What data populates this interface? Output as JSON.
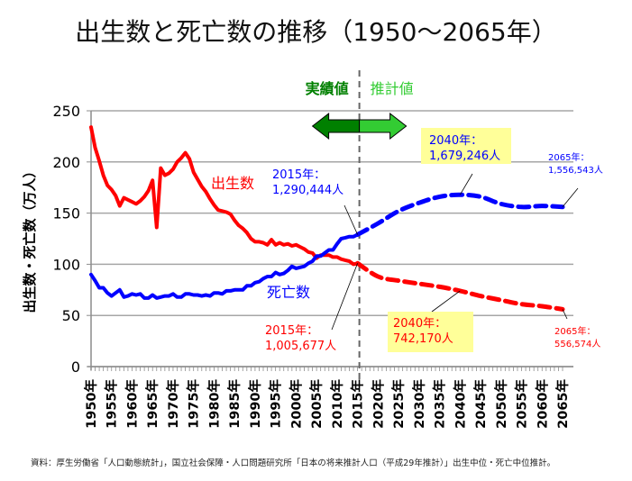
{
  "page": {
    "title": "出生数と死亡数の推移（1950〜2065年）",
    "footnote": "資料：厚生労働省「人口動態統計」，国立社会保障・人口問題研究所「日本の将来推計人口（平成29年推計）」出生中位・死亡中位推計。"
  },
  "chart_data": {
    "type": "line",
    "title": "出生数と死亡数の推移（1950〜2065年）",
    "xlabel": "",
    "ylabel": "出生数・死亡数（万人）",
    "ylim": [
      0,
      250
    ],
    "yticks": [
      0,
      50,
      100,
      150,
      200,
      250
    ],
    "xlim": [
      1950,
      2065
    ],
    "xtick_labels": [
      "1950年",
      "1955年",
      "1960年",
      "1965年",
      "1970年",
      "1975年",
      "1980年",
      "1985年",
      "1990年",
      "1995年",
      "2000年",
      "2005年",
      "2010年",
      "2015年",
      "2020年",
      "2025年",
      "2030年",
      "2035年",
      "2040年",
      "2045年",
      "2050年",
      "2055年",
      "2060年",
      "2065年"
    ],
    "grid": "horizontal",
    "divider_year": 2015,
    "period_labels": {
      "actual": "実績値",
      "projected": "推計値"
    },
    "colors": {
      "births": "#ff0000",
      "deaths": "#0000ff",
      "actual": "#008000",
      "projected": "#33cc33",
      "callout_bg": "#ffff99"
    },
    "series": [
      {
        "name": "出生数",
        "color": "#ff0000",
        "actual": {
          "x": [
            1950,
            1951,
            1952,
            1953,
            1954,
            1955,
            1956,
            1957,
            1958,
            1959,
            1960,
            1961,
            1962,
            1963,
            1964,
            1965,
            1966,
            1967,
            1968,
            1969,
            1970,
            1971,
            1972,
            1973,
            1974,
            1975,
            1976,
            1977,
            1978,
            1979,
            1980,
            1981,
            1982,
            1983,
            1984,
            1985,
            1986,
            1987,
            1988,
            1989,
            1990,
            1991,
            1992,
            1993,
            1994,
            1995,
            1996,
            1997,
            1998,
            1999,
            2000,
            2001,
            2002,
            2003,
            2004,
            2005,
            2006,
            2007,
            2008,
            2009,
            2010,
            2011,
            2012,
            2013,
            2014,
            2015
          ],
          "y": [
            234,
            214,
            201,
            187,
            177,
            173,
            167,
            157,
            165,
            163,
            161,
            159,
            162,
            166,
            172,
            182,
            136,
            194,
            187,
            189,
            193,
            200,
            204,
            209,
            203,
            190,
            183,
            176,
            171,
            164,
            158,
            153,
            152,
            151,
            149,
            143,
            138,
            135,
            131,
            125,
            122,
            122,
            121,
            119,
            124,
            119,
            121,
            119,
            120,
            118,
            119,
            117,
            115,
            112,
            111,
            106,
            109,
            109,
            109,
            107,
            107,
            105,
            104,
            103,
            100,
            101
          ]
        },
        "projected": {
          "x": [
            2015,
            2020,
            2025,
            2030,
            2035,
            2040,
            2045,
            2050,
            2055,
            2060,
            2065
          ],
          "y": [
            101,
            88,
            84,
            81,
            78,
            74,
            69,
            65,
            61,
            59,
            56
          ]
        },
        "label": "出生数",
        "annotations": [
          {
            "year": 2015,
            "line1": "2015年：",
            "line2": "1,005,677人",
            "highlight": false
          },
          {
            "year": 2040,
            "line1": "2040年：",
            "line2": "742,170人",
            "highlight": true
          },
          {
            "year": 2065,
            "line1": "2065年：",
            "line2": "556,574人",
            "highlight": false
          }
        ]
      },
      {
        "name": "死亡数",
        "color": "#0000ff",
        "actual": {
          "x": [
            1950,
            1951,
            1952,
            1953,
            1954,
            1955,
            1956,
            1957,
            1958,
            1959,
            1960,
            1961,
            1962,
            1963,
            1964,
            1965,
            1966,
            1967,
            1968,
            1969,
            1970,
            1971,
            1972,
            1973,
            1974,
            1975,
            1976,
            1977,
            1978,
            1979,
            1980,
            1981,
            1982,
            1983,
            1984,
            1985,
            1986,
            1987,
            1988,
            1989,
            1990,
            1991,
            1992,
            1993,
            1994,
            1995,
            1996,
            1997,
            1998,
            1999,
            2000,
            2001,
            2002,
            2003,
            2004,
            2005,
            2006,
            2007,
            2008,
            2009,
            2010,
            2011,
            2012,
            2013,
            2014,
            2015
          ],
          "y": [
            90,
            84,
            77,
            77,
            72,
            69,
            72,
            75,
            68,
            69,
            71,
            70,
            71,
            67,
            67,
            70,
            67,
            68,
            69,
            69,
            71,
            68,
            68,
            71,
            71,
            70,
            70,
            69,
            70,
            69,
            72,
            72,
            71,
            74,
            74,
            75,
            75,
            75,
            79,
            79,
            82,
            83,
            86,
            88,
            88,
            92,
            90,
            91,
            94,
            98,
            96,
            97,
            98,
            101,
            103,
            108,
            108,
            111,
            114,
            114,
            120,
            125,
            126,
            127,
            127,
            129
          ]
        },
        "projected": {
          "x": [
            2015,
            2020,
            2025,
            2030,
            2035,
            2040,
            2045,
            2050,
            2055,
            2060,
            2065
          ],
          "y": [
            129,
            140,
            152,
            160,
            166,
            168,
            166,
            159,
            156,
            157,
            156
          ]
        },
        "label": "死亡数",
        "annotations": [
          {
            "year": 2015,
            "line1": "2015年：",
            "line2": "1,290,444人",
            "highlight": false
          },
          {
            "year": 2040,
            "line1": "2040年：",
            "line2": "1,679,246人",
            "highlight": true
          },
          {
            "year": 2065,
            "line1": "2065年：",
            "line2": "1,556,543人",
            "highlight": false
          }
        ]
      }
    ]
  }
}
